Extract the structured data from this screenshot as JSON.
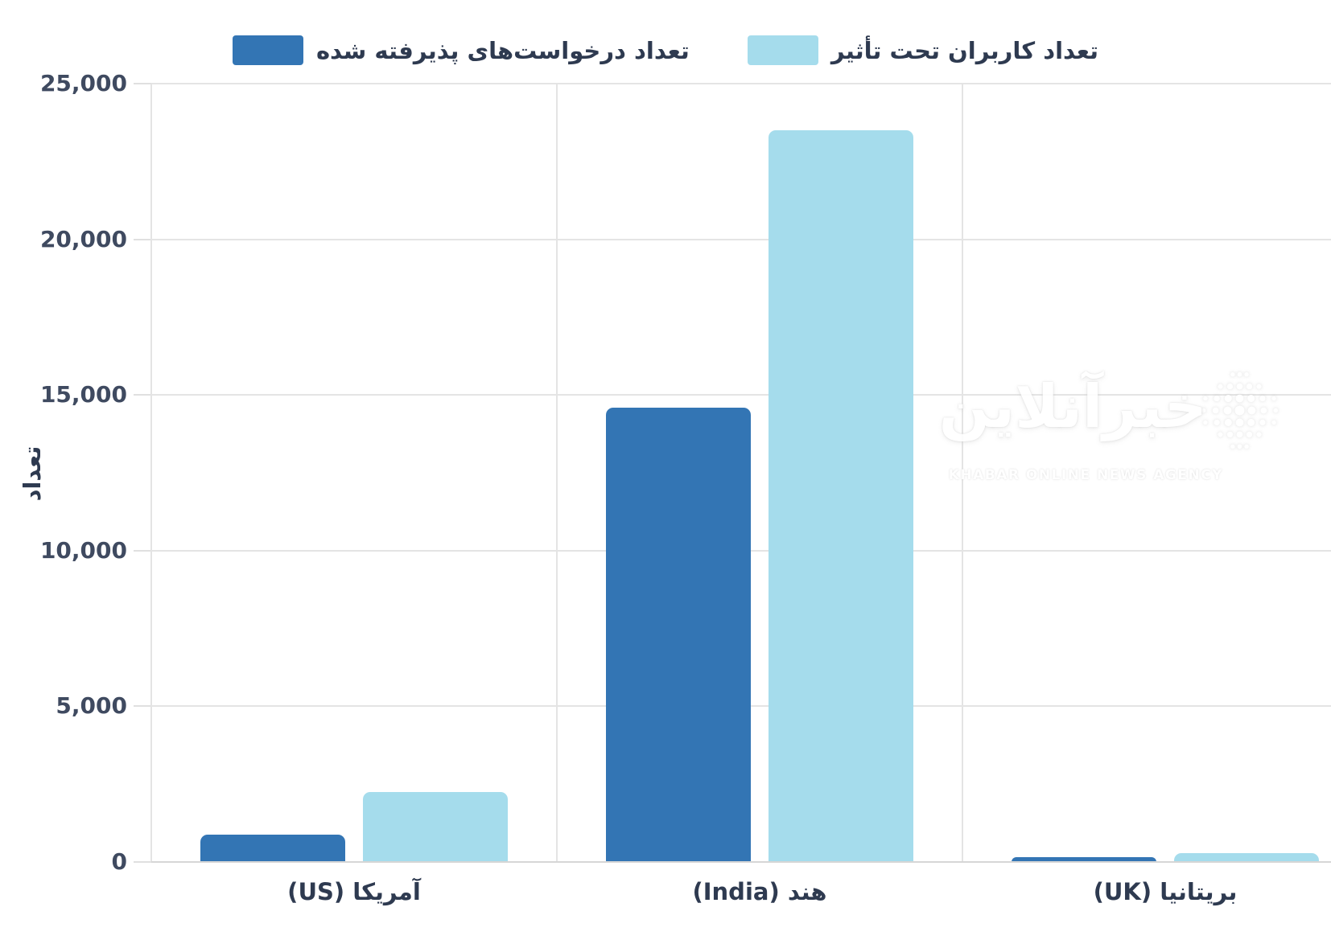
{
  "chart_data": {
    "type": "bar",
    "title": "",
    "ylabel": "تعداد",
    "categories": [
      "آمریکا (US)",
      "هند (India)",
      "بریتانیا (UK)"
    ],
    "series": [
      {
        "name": "تعداد درخواست‌های پذیرفته شده",
        "color": "#3375B4",
        "values": [
          880,
          14600,
          150
        ]
      },
      {
        "name": "تعداد کاربران تحت تأثیر",
        "color": "#A5DCEC",
        "values": [
          2250,
          23500,
          280
        ]
      }
    ],
    "ylim": [
      0,
      25000
    ],
    "yticks": [
      0,
      5000,
      10000,
      15000,
      20000,
      25000
    ],
    "ytick_labels": [
      "0",
      "5,000",
      "10,000",
      "15,000",
      "20,000",
      "25,000"
    ],
    "grid": true,
    "legend_position": "top",
    "direction": "rtl"
  },
  "legend": {
    "items": [
      {
        "label": "تعداد درخواست‌های پذیرفته شده",
        "color": "#3375B4"
      },
      {
        "label": "تعداد کاربران تحت تأثیر",
        "color": "#A5DCEC"
      }
    ]
  },
  "watermark": {
    "logo_text": "خبرآنلاین",
    "agency_text": "KHABAR ONLINE NEWS AGENCY"
  },
  "colors": {
    "series_dark": "#3375B4",
    "series_light": "#A5DCEC",
    "text": "#2E3A50",
    "tick_text": "#3F4A60",
    "grid": "#E4E4E4",
    "baseline": "#D6D6D6",
    "background": "#FFFFFF"
  }
}
